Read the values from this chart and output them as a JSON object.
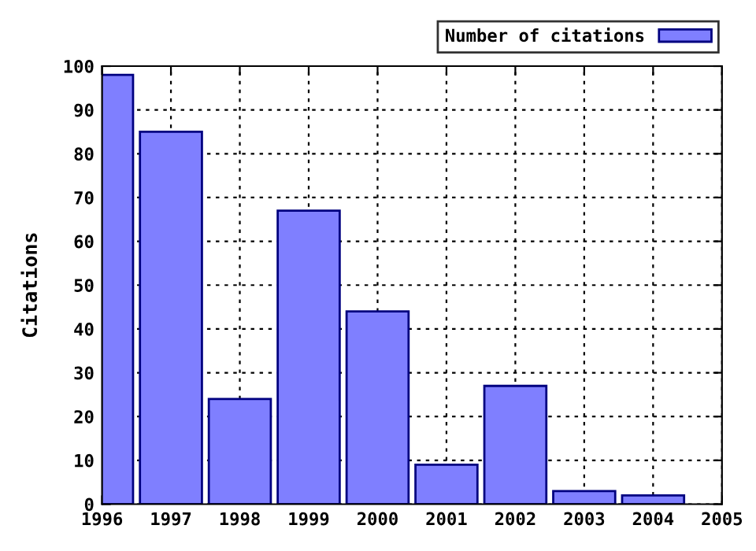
{
  "chart_data": {
    "type": "bar",
    "ylabel": "Citations",
    "x": [
      1996,
      1997,
      1998,
      1999,
      2000,
      2001,
      2002,
      2003,
      2004
    ],
    "series": [
      {
        "name": "Number of citations",
        "color": "#7f7fff",
        "values": [
          98,
          85,
          24,
          67,
          44,
          9,
          27,
          3,
          2
        ]
      }
    ],
    "xlim": [
      1996,
      2005
    ],
    "xticks": [
      1996,
      1997,
      1998,
      1999,
      2000,
      2001,
      2002,
      2003,
      2004,
      2005
    ],
    "ylim": [
      0,
      100
    ],
    "yticks": [
      0,
      10,
      20,
      30,
      40,
      50,
      60,
      70,
      80,
      90,
      100
    ],
    "grid": true,
    "legend": "top right"
  }
}
